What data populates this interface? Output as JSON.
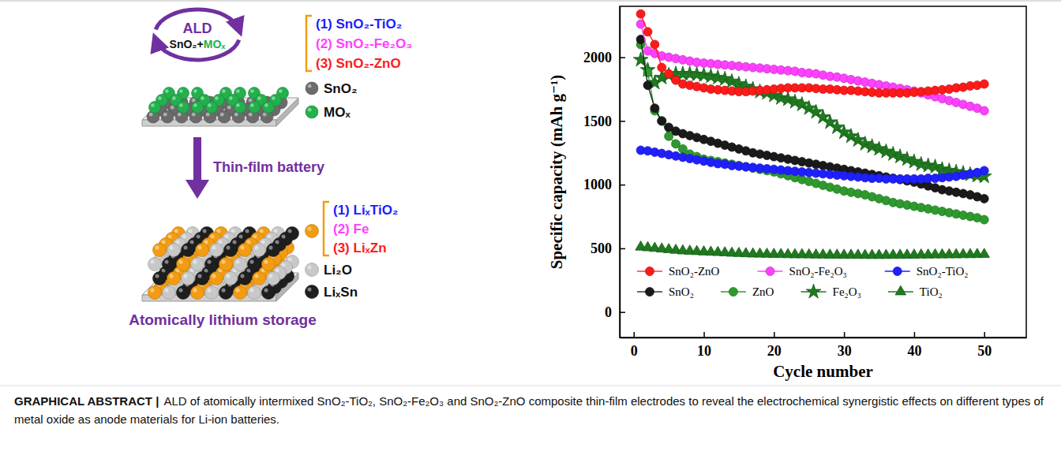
{
  "chart_data": {
    "type": "line",
    "x_label": "Cycle number",
    "y_label": "Specific capacity (mAh g⁻¹)",
    "xlim": [
      -2,
      56
    ],
    "xticks": [
      0,
      10,
      20,
      30,
      40,
      50
    ],
    "ylim": [
      -200,
      2400
    ],
    "yticks": [
      0,
      500,
      1000,
      1500,
      2000
    ],
    "grid": false,
    "legend": "lower left",
    "x": [
      1,
      2,
      3,
      4,
      5,
      6,
      7,
      8,
      9,
      10,
      11,
      12,
      13,
      14,
      15,
      16,
      17,
      18,
      19,
      20,
      21,
      22,
      23,
      24,
      25,
      26,
      27,
      28,
      29,
      30,
      31,
      32,
      33,
      34,
      35,
      36,
      37,
      38,
      39,
      40,
      41,
      42,
      43,
      44,
      45,
      46,
      47,
      48,
      49,
      50
    ],
    "series": [
      {
        "name": "SnO₂-ZnO",
        "color": "#ff1a1a",
        "marker": "circle",
        "line_style": "solid",
        "values": [
          2340,
          2200,
          2100,
          1920,
          1870,
          1820,
          1790,
          1780,
          1770,
          1760,
          1750,
          1745,
          1740,
          1735,
          1730,
          1730,
          1735,
          1740,
          1745,
          1750,
          1755,
          1760,
          1760,
          1760,
          1760,
          1755,
          1750,
          1750,
          1745,
          1740,
          1740,
          1735,
          1730,
          1725,
          1720,
          1720,
          1720,
          1720,
          1720,
          1725,
          1730,
          1735,
          1740,
          1745,
          1750,
          1760,
          1765,
          1775,
          1780,
          1790
        ]
      },
      {
        "name": "SnO₂-Fe₂O₃",
        "color": "#ff40ff",
        "marker": "circle",
        "line_style": "solid",
        "values": [
          2260,
          2050,
          2030,
          2010,
          2000,
          1990,
          1980,
          1970,
          1960,
          1955,
          1950,
          1945,
          1940,
          1935,
          1930,
          1925,
          1920,
          1915,
          1910,
          1905,
          1900,
          1895,
          1890,
          1880,
          1875,
          1870,
          1860,
          1850,
          1845,
          1835,
          1825,
          1815,
          1805,
          1795,
          1785,
          1775,
          1765,
          1755,
          1745,
          1735,
          1720,
          1705,
          1690,
          1675,
          1660,
          1645,
          1630,
          1615,
          1600,
          1580
        ]
      },
      {
        "name": "SnO₂-TiO₂",
        "color": "#2020ff",
        "marker": "circle",
        "line_style": "solid",
        "values": [
          1270,
          1265,
          1255,
          1245,
          1235,
          1225,
          1215,
          1205,
          1195,
          1185,
          1175,
          1165,
          1160,
          1150,
          1145,
          1140,
          1135,
          1130,
          1125,
          1120,
          1115,
          1110,
          1105,
          1100,
          1095,
          1090,
          1085,
          1080,
          1075,
          1070,
          1065,
          1060,
          1055,
          1050,
          1050,
          1045,
          1045,
          1045,
          1045,
          1045,
          1045,
          1050,
          1050,
          1055,
          1060,
          1065,
          1075,
          1085,
          1095,
          1110
        ]
      },
      {
        "name": "SnO₂",
        "color": "#1a1a1a",
        "marker": "circle",
        "line_style": "solid",
        "values": [
          2140,
          1780,
          1600,
          1500,
          1450,
          1420,
          1400,
          1385,
          1370,
          1355,
          1340,
          1325,
          1310,
          1295,
          1280,
          1265,
          1250,
          1240,
          1230,
          1220,
          1210,
          1200,
          1190,
          1180,
          1170,
          1160,
          1150,
          1140,
          1130,
          1120,
          1110,
          1100,
          1090,
          1080,
          1070,
          1060,
          1050,
          1040,
          1030,
          1020,
          1005,
          990,
          975,
          960,
          950,
          940,
          930,
          920,
          905,
          890
        ]
      },
      {
        "name": "ZnO",
        "color": "#2e9a2e",
        "marker": "circle",
        "line_style": "solid",
        "values": [
          2100,
          1880,
          1580,
          1500,
          1380,
          1320,
          1280,
          1240,
          1220,
          1200,
          1190,
          1180,
          1170,
          1160,
          1150,
          1140,
          1130,
          1120,
          1110,
          1100,
          1085,
          1070,
          1055,
          1040,
          1025,
          1010,
          995,
          980,
          965,
          950,
          940,
          930,
          920,
          905,
          890,
          875,
          860,
          850,
          840,
          830,
          820,
          810,
          800,
          790,
          780,
          770,
          760,
          750,
          740,
          725
        ]
      },
      {
        "name": "Fe₂O₃",
        "color": "#1f7a1f",
        "marker": "star",
        "line_style": "solid",
        "values": [
          1980,
          1900,
          1800,
          1840,
          1860,
          1870,
          1870,
          1870,
          1865,
          1860,
          1850,
          1840,
          1830,
          1810,
          1790,
          1770,
          1750,
          1730,
          1720,
          1700,
          1680,
          1670,
          1650,
          1630,
          1600,
          1570,
          1530,
          1490,
          1450,
          1410,
          1380,
          1350,
          1320,
          1300,
          1280,
          1260,
          1240,
          1220,
          1200,
          1180,
          1160,
          1150,
          1140,
          1120,
          1110,
          1100,
          1090,
          1080,
          1070,
          1065
        ]
      },
      {
        "name": "TiO₂",
        "color": "#1f7a1f",
        "marker": "triangle",
        "line_style": "solid",
        "values": [
          510,
          505,
          500,
          495,
          490,
          485,
          480,
          478,
          475,
          472,
          470,
          468,
          465,
          462,
          460,
          458,
          456,
          455,
          454,
          453,
          452,
          451,
          450,
          450,
          449,
          448,
          448,
          447,
          447,
          446,
          446,
          446,
          445,
          445,
          445,
          445,
          446,
          446,
          447,
          447,
          448,
          448,
          449,
          449,
          450,
          450,
          451,
          451,
          452,
          452
        ]
      }
    ]
  },
  "diagram": {
    "cycle_label": "ALD",
    "precursor": {
      "base": "SnO₂+",
      "added": "MOₓ",
      "added_color": "#22b14c"
    },
    "composites": [
      {
        "label": "(1) SnO₂-TiO₂",
        "color": "#2020ff"
      },
      {
        "label": "(2) SnO₂-Fe₂O₃",
        "color": "#ff40ff"
      },
      {
        "label": "(3) SnO₂-ZnO",
        "color": "#ff1a1a"
      }
    ],
    "top_legend": [
      {
        "label": "SnO₂",
        "color": "#6b6b6b"
      },
      {
        "label": "MOₓ",
        "color": "#22b14c"
      }
    ],
    "arrow_label": "Thin-film battery",
    "products_color": "#f39c12",
    "products": [
      {
        "label": "(1) LiₓTiO₂",
        "color": "#2020ff"
      },
      {
        "label": "(2) Fe",
        "color": "#ff40ff"
      },
      {
        "label": "(3) LiₓZn",
        "color": "#ff1a1a"
      }
    ],
    "bottom_legend": [
      {
        "label": "Li₂O",
        "color": "#c8c8c8"
      },
      {
        "label": "LiₓSn",
        "color": "#1e1e1e"
      }
    ],
    "footer": "Atomically lithium storage"
  },
  "caption": {
    "lead": "GRAPHICAL ABSTRACT |",
    "text": "ALD of atomically intermixed SnO₂-TiO₂, SnO₂-Fe₂O₃ and SnO₂-ZnO composite thin-film electrodes to reveal the electrochemical synergistic effects on different types of metal oxide as anode materials for Li-ion batteries."
  }
}
